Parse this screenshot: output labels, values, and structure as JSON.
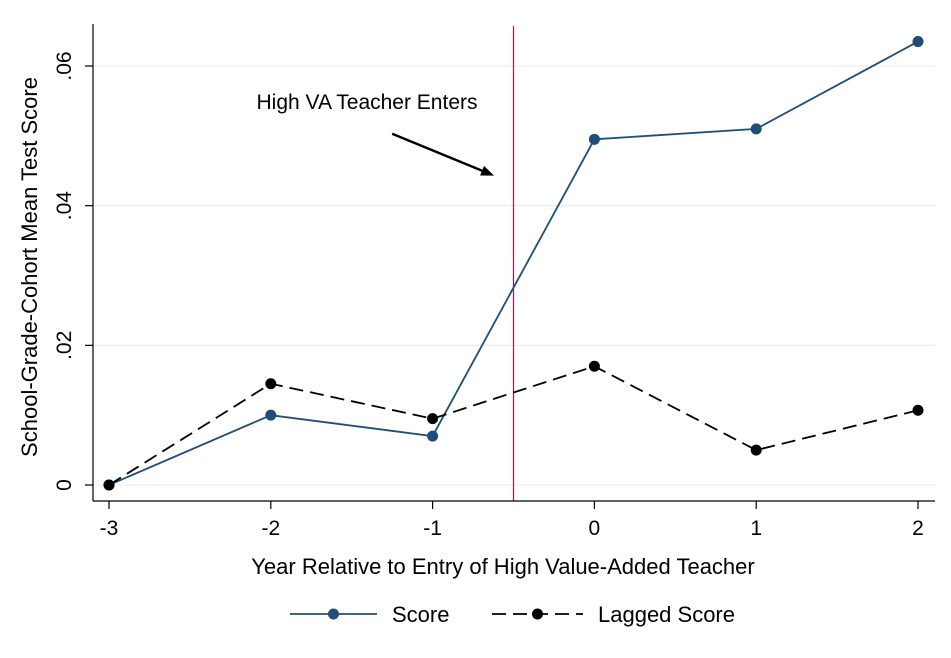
{
  "chart_data": {
    "type": "line",
    "xlabel": "Year Relative to Entry of High Value-Added Teacher",
    "ylabel": "School-Grade-Cohort Mean Test Score",
    "x": [
      -3,
      -2,
      -1,
      0,
      1,
      2
    ],
    "xticks": [
      -3,
      -2,
      -1,
      0,
      1,
      2
    ],
    "xtick_labels": [
      "-3",
      "-2",
      "-1",
      "0",
      "1",
      "2"
    ],
    "xlim": [
      -3.0,
      2.0
    ],
    "ylim": [
      -0.002,
      0.066
    ],
    "yticks": [
      0,
      0.02,
      0.04,
      0.06
    ],
    "ytick_labels": [
      "0",
      ".02",
      ".04",
      ".06"
    ],
    "grid": "horizontal",
    "legend_position": "bottom",
    "series": [
      {
        "name": "Score",
        "values": [
          0.0,
          0.01,
          0.007,
          0.0495,
          0.051,
          0.0635
        ],
        "color": "#1f4e79",
        "line_style": "solid",
        "marker": "circle"
      },
      {
        "name": "Lagged Score",
        "values": [
          0.0,
          0.0145,
          0.0095,
          0.017,
          0.005,
          0.0107
        ],
        "color": "#000000",
        "line_style": "dashed",
        "marker": "circle"
      }
    ],
    "reference_line": {
      "x": -0.5,
      "color": "#9b1b4d"
    },
    "annotation": {
      "text": "High VA Teacher Enters",
      "arrow_from": {
        "x": -1.25,
        "y": 0.0503
      },
      "arrow_to": {
        "x": -0.62,
        "y": 0.0443
      }
    }
  }
}
